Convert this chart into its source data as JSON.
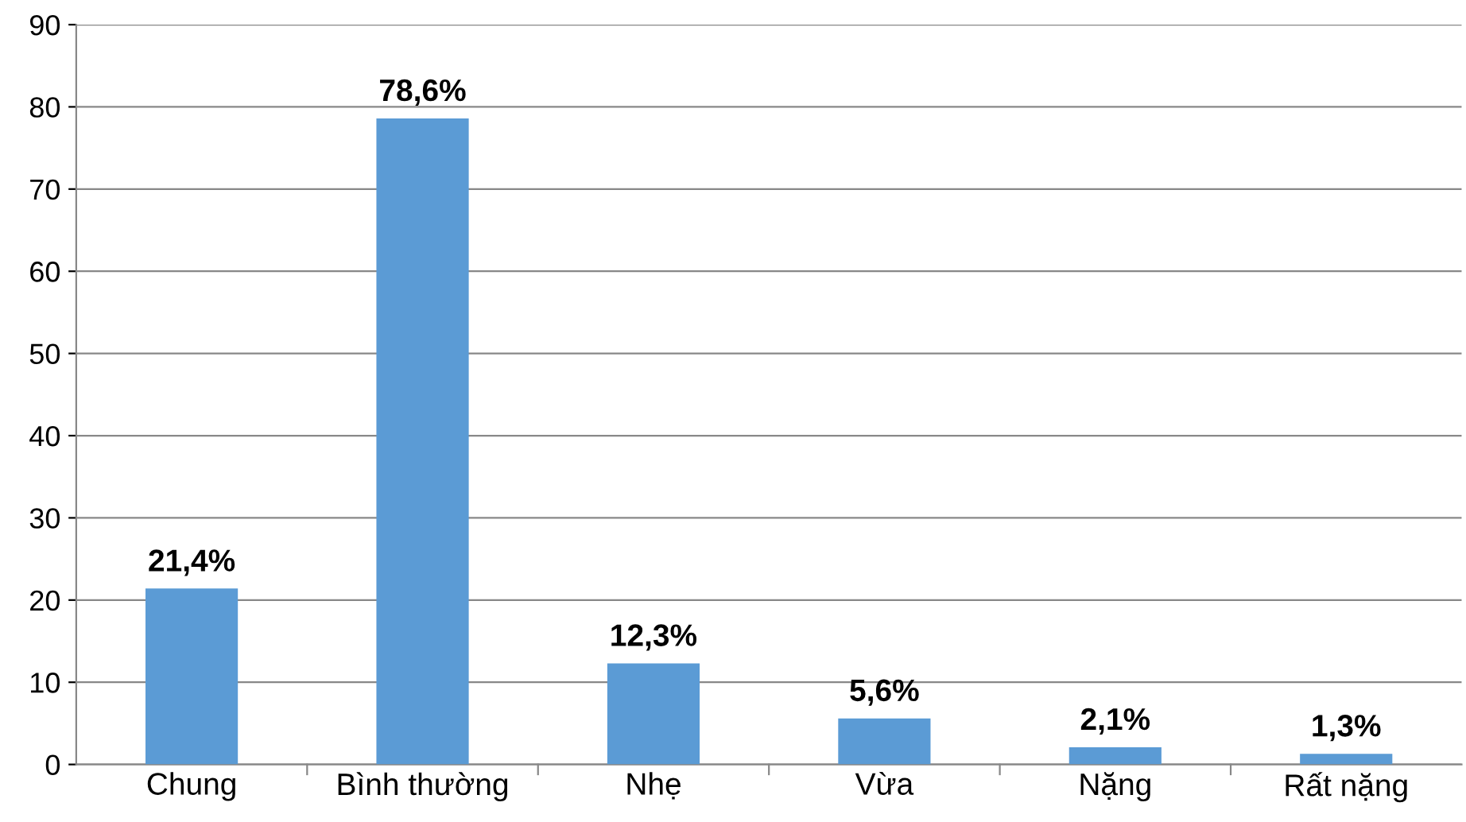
{
  "chart_data": {
    "type": "bar",
    "categories": [
      "Chung",
      "Bình thường",
      "Nhẹ",
      "Vừa",
      "Nặng",
      "Rất nặng"
    ],
    "values": [
      21.4,
      78.6,
      12.3,
      5.6,
      2.1,
      1.3
    ],
    "value_labels": [
      "21,4%",
      "78,6%",
      "12,3%",
      "5,6%",
      "2,1%",
      "1,3%"
    ],
    "color": "#5b9bd5",
    "ylim": [
      0,
      90
    ],
    "yticks": [
      0,
      10,
      20,
      30,
      40,
      50,
      60,
      70,
      80,
      90
    ],
    "grid": "y",
    "legend": false
  }
}
